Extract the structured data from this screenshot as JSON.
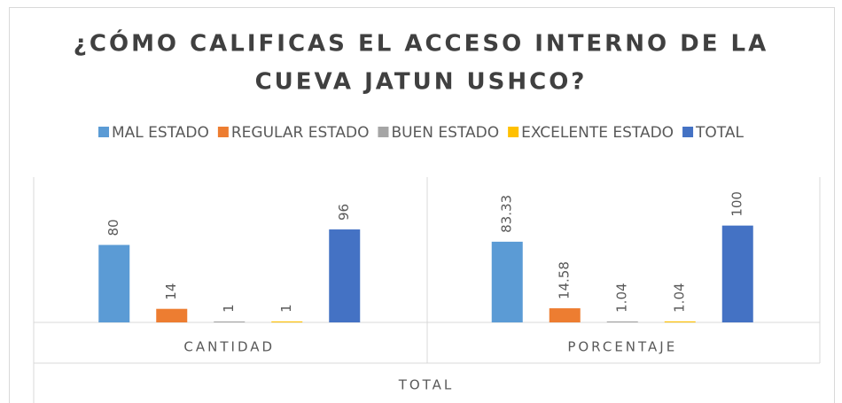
{
  "chart_data": {
    "type": "bar",
    "title": [
      "¿CÓMO CALIFICAS EL ACCESO INTERNO DE LA",
      "CUEVA JATUN USHCO?"
    ],
    "categories": [
      "CANTIDAD",
      "PORCENTAJE"
    ],
    "category_group": "TOTAL",
    "series": [
      {
        "name": "MAL ESTADO",
        "color": "#5b9bd5",
        "values": [
          80,
          83.33
        ]
      },
      {
        "name": "REGULAR ESTADO",
        "color": "#ed7d31",
        "values": [
          14,
          14.58
        ]
      },
      {
        "name": "BUEN ESTADO",
        "color": "#a5a5a5",
        "values": [
          1,
          1.04
        ]
      },
      {
        "name": "EXCELENTE ESTADO",
        "color": "#ffc000",
        "values": [
          1,
          1.04
        ]
      },
      {
        "name": "TOTAL",
        "color": "#4472c4",
        "values": [
          96,
          100
        ]
      }
    ],
    "ylim": [
      0,
      150
    ],
    "legend": "top"
  }
}
